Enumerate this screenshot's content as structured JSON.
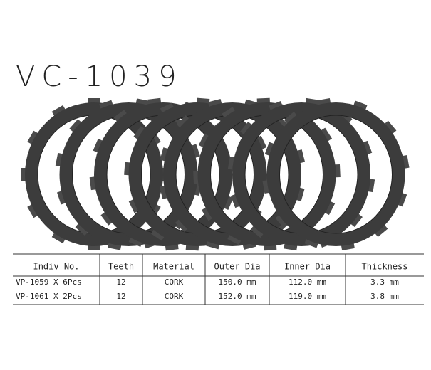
{
  "title": "VC-1039",
  "table": {
    "headers": [
      "Indiv No.",
      "Teeth",
      "Material",
      "Outer Dia",
      "Inner Dia",
      "Thickness"
    ],
    "rows": [
      [
        "VP-1059 X 6Pcs",
        "12",
        "CORK",
        "150.0 mm",
        "112.0 mm",
        "3.3 mm"
      ],
      [
        "VP-1061 X 2Pcs",
        "12",
        "CORK",
        "152.0 mm",
        "119.0 mm",
        "3.8 mm"
      ]
    ]
  }
}
